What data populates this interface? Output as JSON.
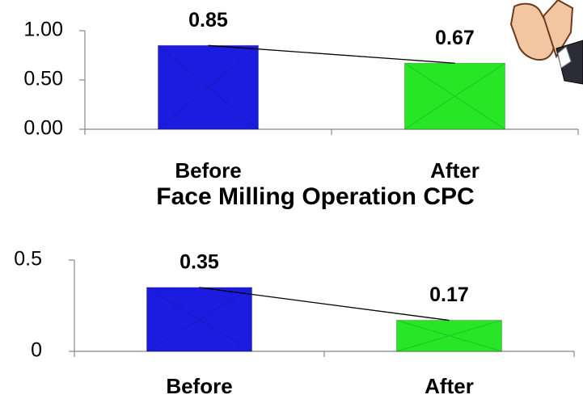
{
  "chart_data": [
    {
      "type": "bar",
      "categories": [
        "Before",
        "After"
      ],
      "values": [
        0.85,
        0.67
      ],
      "colors": [
        "#1c1ce0",
        "#26e626"
      ],
      "ylim": [
        0,
        1
      ],
      "yticks": [
        {
          "value": 0,
          "label": "0.00"
        },
        {
          "value": 0.5,
          "label": "0.50"
        },
        {
          "value": 1,
          "label": "1.00"
        }
      ]
    },
    {
      "type": "bar",
      "title": "Face Milling Operation CPC",
      "categories": [
        "Before",
        "After"
      ],
      "values": [
        0.35,
        0.17
      ],
      "colors": [
        "#1c1ce0",
        "#26e626"
      ],
      "ylim": [
        0,
        0.5
      ],
      "yticks": [
        0,
        0.5
      ]
    }
  ]
}
